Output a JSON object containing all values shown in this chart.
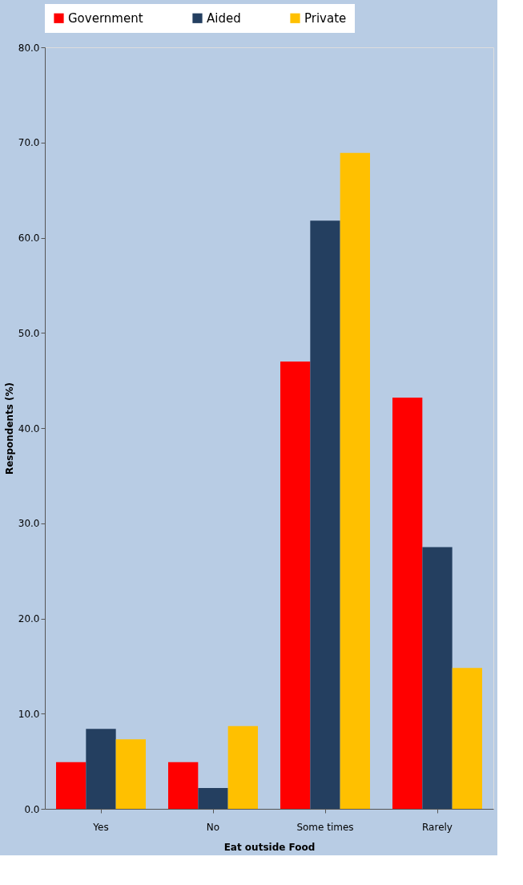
{
  "chart_data": {
    "type": "bar",
    "xlabel": "Eat outside Food",
    "ylabel": "Respondents (%)",
    "categories": [
      "Yes",
      "No",
      "Some times",
      "Rarely"
    ],
    "series": [
      {
        "name": "Government",
        "color": "#ff0000",
        "values": [
          4.9,
          4.9,
          47.0,
          43.2
        ]
      },
      {
        "name": "Aided",
        "color": "#243f60",
        "values": [
          8.4,
          2.2,
          61.8,
          27.5
        ]
      },
      {
        "name": "Private",
        "color": "#ffc000",
        "values": [
          7.3,
          8.7,
          68.9,
          14.8
        ]
      }
    ],
    "ylim": [
      0,
      80
    ],
    "yticks": [
      {
        "value": 0,
        "label": "0.0"
      },
      {
        "value": 10,
        "label": "10.0"
      },
      {
        "value": 20,
        "label": "20.0"
      },
      {
        "value": 30,
        "label": "30.0"
      },
      {
        "value": 40,
        "label": "40.0"
      },
      {
        "value": 50,
        "label": "50.0"
      },
      {
        "value": 60,
        "label": "60.0"
      },
      {
        "value": 70,
        "label": "70.0"
      },
      {
        "value": 80,
        "label": "80.0"
      }
    ],
    "grid": false,
    "legend": "top"
  }
}
